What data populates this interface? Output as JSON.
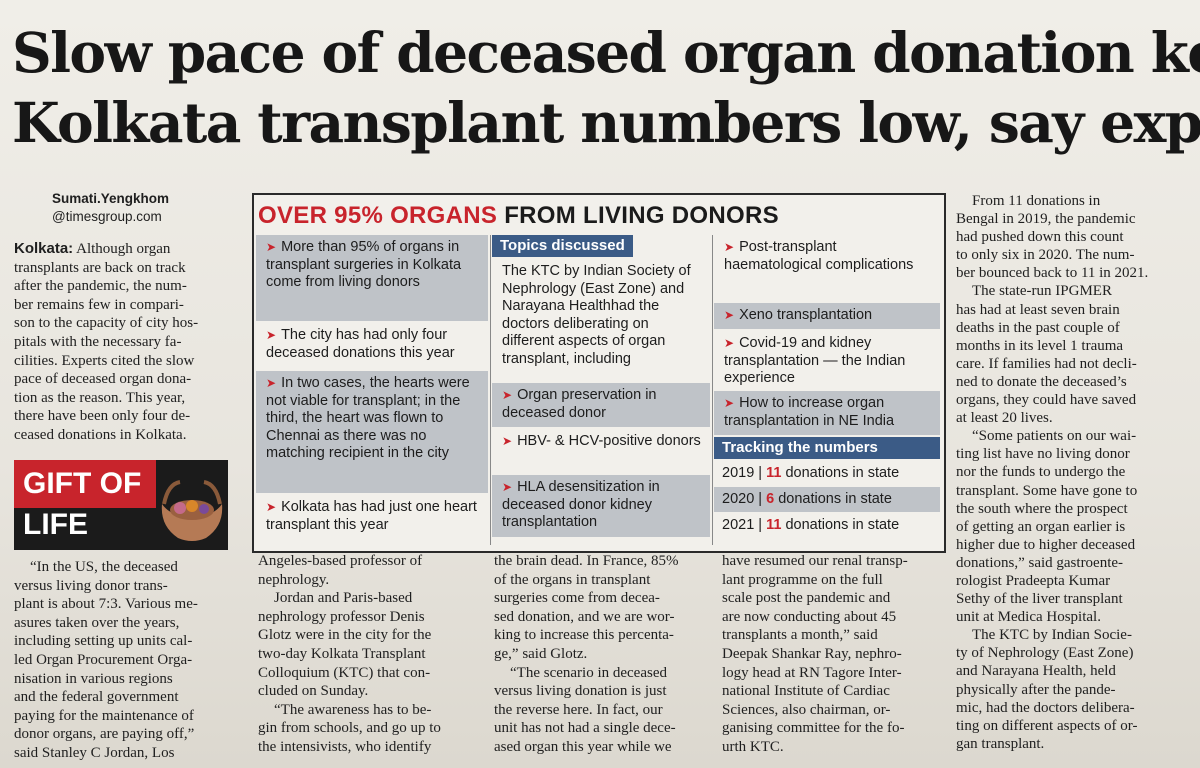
{
  "headline": {
    "line1": "Slow pace of deceased organ donation keeps",
    "line2": "Kolkata transplant numbers low, say experts"
  },
  "byline": {
    "author": "Sumati.Yengkhom",
    "outlet": "@timesgroup.com"
  },
  "col1": {
    "dateline": "Kolkata:",
    "lines": [
      " Although organ",
      "transplants are back on track",
      "after the pandemic, the num-",
      "ber remains few in compari-",
      "son to the capacity of city hos-",
      "pitals with the necessary fa-",
      "cilities. Experts cited the slow",
      "pace of deceased organ dona-",
      "tion as the reason. This year,",
      "there have been only four de-",
      "ceased donations in Kolkata."
    ]
  },
  "gift": {
    "line1": "GIFT OF",
    "line2": "LIFE"
  },
  "col1b": {
    "lines": [
      "“In the US, the deceased",
      "versus living donor trans-",
      "plant is about 7:3. Various me-",
      "asures taken over the years,",
      "including setting up units cal-",
      "led Organ Procurement Orga-",
      "nisation in various regions",
      "and the federal government",
      "paying for the maintenance of",
      "donor organs, are paying off,”",
      "said Stanley C Jordan, Los"
    ]
  },
  "col2": {
    "lines": [
      "Angeles-based professor of",
      "nephrology.",
      "Jordan and Paris-based",
      "nephrology professor Denis",
      "Glotz were in the city for the",
      "two-day Kolkata Transplant",
      "Colloquium (KTC) that con-",
      "cluded on Sunday.",
      "“The awareness has to be-",
      "gin from schools, and go up to",
      "the intensivists, who identify"
    ]
  },
  "col3": {
    "lines": [
      "the brain dead. In France, 85%",
      "of the organs in transplant",
      "surgeries come from decea-",
      "sed donation, and we are wor-",
      "king to increase this percenta-",
      "ge,” said Glotz.",
      "“The scenario in deceased",
      "versus living donation is just",
      "the reverse here. In fact, our",
      "unit has not had a single dece-",
      "ased organ this year while we"
    ]
  },
  "col4": {
    "lines": [
      "have resumed our renal transp-",
      "lant programme on the full",
      "scale post the pandemic and",
      "are now conducting about 45",
      "transplants a month,” said",
      "Deepak Shankar Ray, nephro-",
      "logy head at RN Tagore Inter-",
      "national Institute of Cardiac",
      "Sciences, also chairman, or-",
      "ganising committee for the fo-",
      "urth KTC."
    ]
  },
  "col5": {
    "lines": [
      "From 11 donations in",
      "Bengal in 2019, the pandemic",
      "had pushed down this count",
      "to only six in 2020. The num-",
      "ber bounced back to 11 in 2021.",
      "The state-run IPGMER",
      "has had at least seven brain",
      "deaths in the past couple of",
      "months in its level 1 trauma",
      "care. If families had not decli-",
      "ned to donate the deceased’s",
      "organs, they could have saved",
      "at least 20 lives.",
      "“Some patients on our wai-",
      "ting list have no living donor",
      "nor the funds to undergo the",
      "transplant. Some have gone to",
      "the south where the prospect",
      "of getting an organ earlier is",
      "higher due to higher deceased",
      "donations,” said gastroente-",
      "rologist Pradeepta Kumar",
      "Sethy of the liver transplant",
      "unit at Medica Hospital.",
      "The KTC by Indian Socie-",
      "ty of Nephrology (East Zone)",
      "and Narayana Health, held",
      "physically after the pande-",
      "mic, had the doctors delibera-",
      "ting on different aspects of or-",
      "gan transplant."
    ]
  },
  "box": {
    "title_red": "OVER 95% ORGANS",
    "title_dark": "FROM LIVING DONORS",
    "left_items": [
      "More than 95% of organs in transplant surgeries in Kolkata come from living donors",
      "The city has had only four deceased donations this year",
      "In two cases, the hearts were not viable for transplant; in the third, the heart was flown to Chennai as there was no matching recipient in the city",
      "Kolkata has had just one heart transplant this year"
    ],
    "topics_label": "Topics discussed",
    "topics_intro": "The KTC by Indian Society of Nephrology (East Zone) and Narayana Healthhad the doctors deliberating on different aspects of organ transplant, including",
    "mid_items": [
      "Organ preservation in deceased donor",
      "HBV- & HCV-positive donors",
      "HLA desensitization in deceased donor kidney transplantation"
    ],
    "right_items": [
      "Post-transplant haematological complications",
      "Xeno transplantation",
      "Covid-19 and kidney transplantation — the Indian experience",
      "How to increase organ transplantation in NE India"
    ],
    "tracking_label": "Tracking the numbers",
    "tracking": [
      {
        "year": "2019",
        "sep": "|",
        "count": "11",
        "text": "donations in state"
      },
      {
        "year": "2020",
        "sep": "|",
        "count": "6",
        "text": "donations in state"
      },
      {
        "year": "2021",
        "sep": "|",
        "count": "11",
        "text": "donations in state"
      }
    ],
    "arrow": "➤"
  },
  "colors": {
    "accent_red": "#c8242c",
    "tag_blue": "#3b5b86",
    "shade": "#bfc3c8"
  }
}
